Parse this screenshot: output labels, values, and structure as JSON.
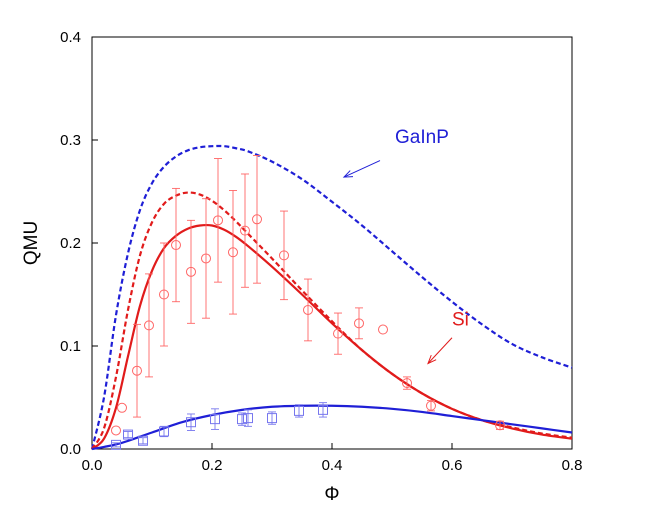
{
  "chart_data": {
    "type": "line",
    "title": "",
    "xlabel": "Φ",
    "ylabel": "QMU",
    "xlim": [
      0.0,
      0.8
    ],
    "ylim": [
      0.0,
      0.4
    ],
    "x_ticks": [
      0.0,
      0.2,
      0.4,
      0.6,
      0.8
    ],
    "x_tick_labels": [
      "0.0",
      "0.2",
      "0.4",
      "0.6",
      "0.8"
    ],
    "y_ticks": [
      0.0,
      0.1,
      0.2,
      0.3,
      0.4
    ],
    "y_tick_labels": [
      "0.0",
      "0.1",
      "0.2",
      "0.3",
      "0.4"
    ],
    "grid": false,
    "series": [
      {
        "name": "GaInP dashed",
        "color": "#1f1fd6",
        "style": "dashed",
        "x": [
          0.0,
          0.02,
          0.04,
          0.06,
          0.08,
          0.1,
          0.12,
          0.14,
          0.16,
          0.18,
          0.2,
          0.22,
          0.24,
          0.26,
          0.3,
          0.35,
          0.4,
          0.45,
          0.5,
          0.55,
          0.6,
          0.65,
          0.7,
          0.75,
          0.8
        ],
        "y": [
          0.0,
          0.05,
          0.13,
          0.19,
          0.232,
          0.258,
          0.274,
          0.284,
          0.29,
          0.293,
          0.294,
          0.294,
          0.292,
          0.289,
          0.279,
          0.262,
          0.24,
          0.217,
          0.192,
          0.167,
          0.143,
          0.121,
          0.102,
          0.089,
          0.079
        ]
      },
      {
        "name": "Si dashed",
        "color": "#e11b1b",
        "style": "dashed",
        "x": [
          0.0,
          0.02,
          0.04,
          0.06,
          0.08,
          0.1,
          0.12,
          0.14,
          0.16,
          0.18,
          0.2,
          0.22,
          0.24,
          0.26,
          0.3,
          0.35,
          0.4,
          0.45,
          0.5,
          0.55,
          0.6,
          0.65,
          0.7,
          0.75,
          0.8
        ],
        "y": [
          0.0,
          0.02,
          0.07,
          0.135,
          0.188,
          0.22,
          0.238,
          0.246,
          0.249,
          0.247,
          0.241,
          0.232,
          0.221,
          0.209,
          0.185,
          0.154,
          0.124,
          0.096,
          0.073,
          0.054,
          0.039,
          0.028,
          0.021,
          0.015,
          0.011
        ]
      },
      {
        "name": "Si solid",
        "color": "#e11b1b",
        "style": "solid",
        "x": [
          0.0,
          0.02,
          0.04,
          0.06,
          0.08,
          0.1,
          0.12,
          0.14,
          0.16,
          0.18,
          0.2,
          0.22,
          0.24,
          0.26,
          0.3,
          0.35,
          0.4,
          0.45,
          0.5,
          0.55,
          0.6,
          0.65,
          0.7,
          0.75,
          0.8
        ],
        "y": [
          0.0,
          0.01,
          0.04,
          0.09,
          0.139,
          0.173,
          0.195,
          0.207,
          0.214,
          0.217,
          0.217,
          0.213,
          0.206,
          0.197,
          0.177,
          0.15,
          0.122,
          0.096,
          0.073,
          0.054,
          0.039,
          0.028,
          0.02,
          0.014,
          0.01
        ]
      },
      {
        "name": "GaInP solid",
        "color": "#1f1fd6",
        "style": "solid",
        "x": [
          0.0,
          0.02,
          0.05,
          0.1,
          0.15,
          0.2,
          0.25,
          0.3,
          0.35,
          0.4,
          0.45,
          0.5,
          0.55,
          0.6,
          0.65,
          0.7,
          0.75,
          0.8
        ],
        "y": [
          0.0,
          0.002,
          0.006,
          0.016,
          0.026,
          0.033,
          0.038,
          0.041,
          0.042,
          0.042,
          0.041,
          0.039,
          0.036,
          0.032,
          0.028,
          0.024,
          0.02,
          0.016
        ]
      }
    ],
    "markers": [
      {
        "name": "Si data",
        "shape": "circle",
        "color": "#ff6666",
        "points": [
          {
            "x": 0.04,
            "y": 0.018,
            "err": 0.0
          },
          {
            "x": 0.05,
            "y": 0.04,
            "err": 0.0
          },
          {
            "x": 0.075,
            "y": 0.076,
            "err": 0.045
          },
          {
            "x": 0.095,
            "y": 0.12,
            "err": 0.05
          },
          {
            "x": 0.12,
            "y": 0.15,
            "err": 0.05
          },
          {
            "x": 0.14,
            "y": 0.198,
            "err": 0.055
          },
          {
            "x": 0.165,
            "y": 0.172,
            "err": 0.05
          },
          {
            "x": 0.19,
            "y": 0.185,
            "err": 0.058
          },
          {
            "x": 0.21,
            "y": 0.222,
            "err": 0.06
          },
          {
            "x": 0.235,
            "y": 0.191,
            "err": 0.06
          },
          {
            "x": 0.255,
            "y": 0.212,
            "err": 0.055
          },
          {
            "x": 0.275,
            "y": 0.223,
            "err": 0.062
          },
          {
            "x": 0.32,
            "y": 0.188,
            "err": 0.043
          },
          {
            "x": 0.36,
            "y": 0.135,
            "err": 0.03
          },
          {
            "x": 0.41,
            "y": 0.112,
            "err": 0.02
          },
          {
            "x": 0.445,
            "y": 0.122,
            "err": 0.015
          },
          {
            "x": 0.485,
            "y": 0.116,
            "err": 0.0
          },
          {
            "x": 0.525,
            "y": 0.064,
            "err": 0.006
          },
          {
            "x": 0.565,
            "y": 0.042,
            "err": 0.005
          },
          {
            "x": 0.68,
            "y": 0.023,
            "err": 0.004
          }
        ]
      },
      {
        "name": "GaInP data",
        "shape": "square",
        "color": "#7777ee",
        "points": [
          {
            "x": 0.04,
            "y": 0.004,
            "err": 0.002
          },
          {
            "x": 0.06,
            "y": 0.014,
            "err": 0.003
          },
          {
            "x": 0.085,
            "y": 0.008,
            "err": 0.003
          },
          {
            "x": 0.12,
            "y": 0.017,
            "err": 0.005
          },
          {
            "x": 0.165,
            "y": 0.026,
            "err": 0.008
          },
          {
            "x": 0.205,
            "y": 0.029,
            "err": 0.01
          },
          {
            "x": 0.25,
            "y": 0.029,
            "err": 0.006
          },
          {
            "x": 0.26,
            "y": 0.03,
            "err": 0.008
          },
          {
            "x": 0.3,
            "y": 0.03,
            "err": 0.006
          },
          {
            "x": 0.345,
            "y": 0.037,
            "err": 0.006
          },
          {
            "x": 0.385,
            "y": 0.038,
            "err": 0.007
          }
        ]
      }
    ],
    "annotations": [
      {
        "text": "GaInP",
        "color": "#1f1fd6",
        "at": [
          0.505,
          0.297
        ],
        "arrow_from": [
          0.48,
          0.28
        ],
        "arrow_to": [
          0.42,
          0.264
        ]
      },
      {
        "text": "Si",
        "color": "#e11b1b",
        "at": [
          0.6,
          0.12
        ],
        "arrow_from": [
          0.6,
          0.108
        ],
        "arrow_to": [
          0.56,
          0.083
        ]
      }
    ]
  }
}
